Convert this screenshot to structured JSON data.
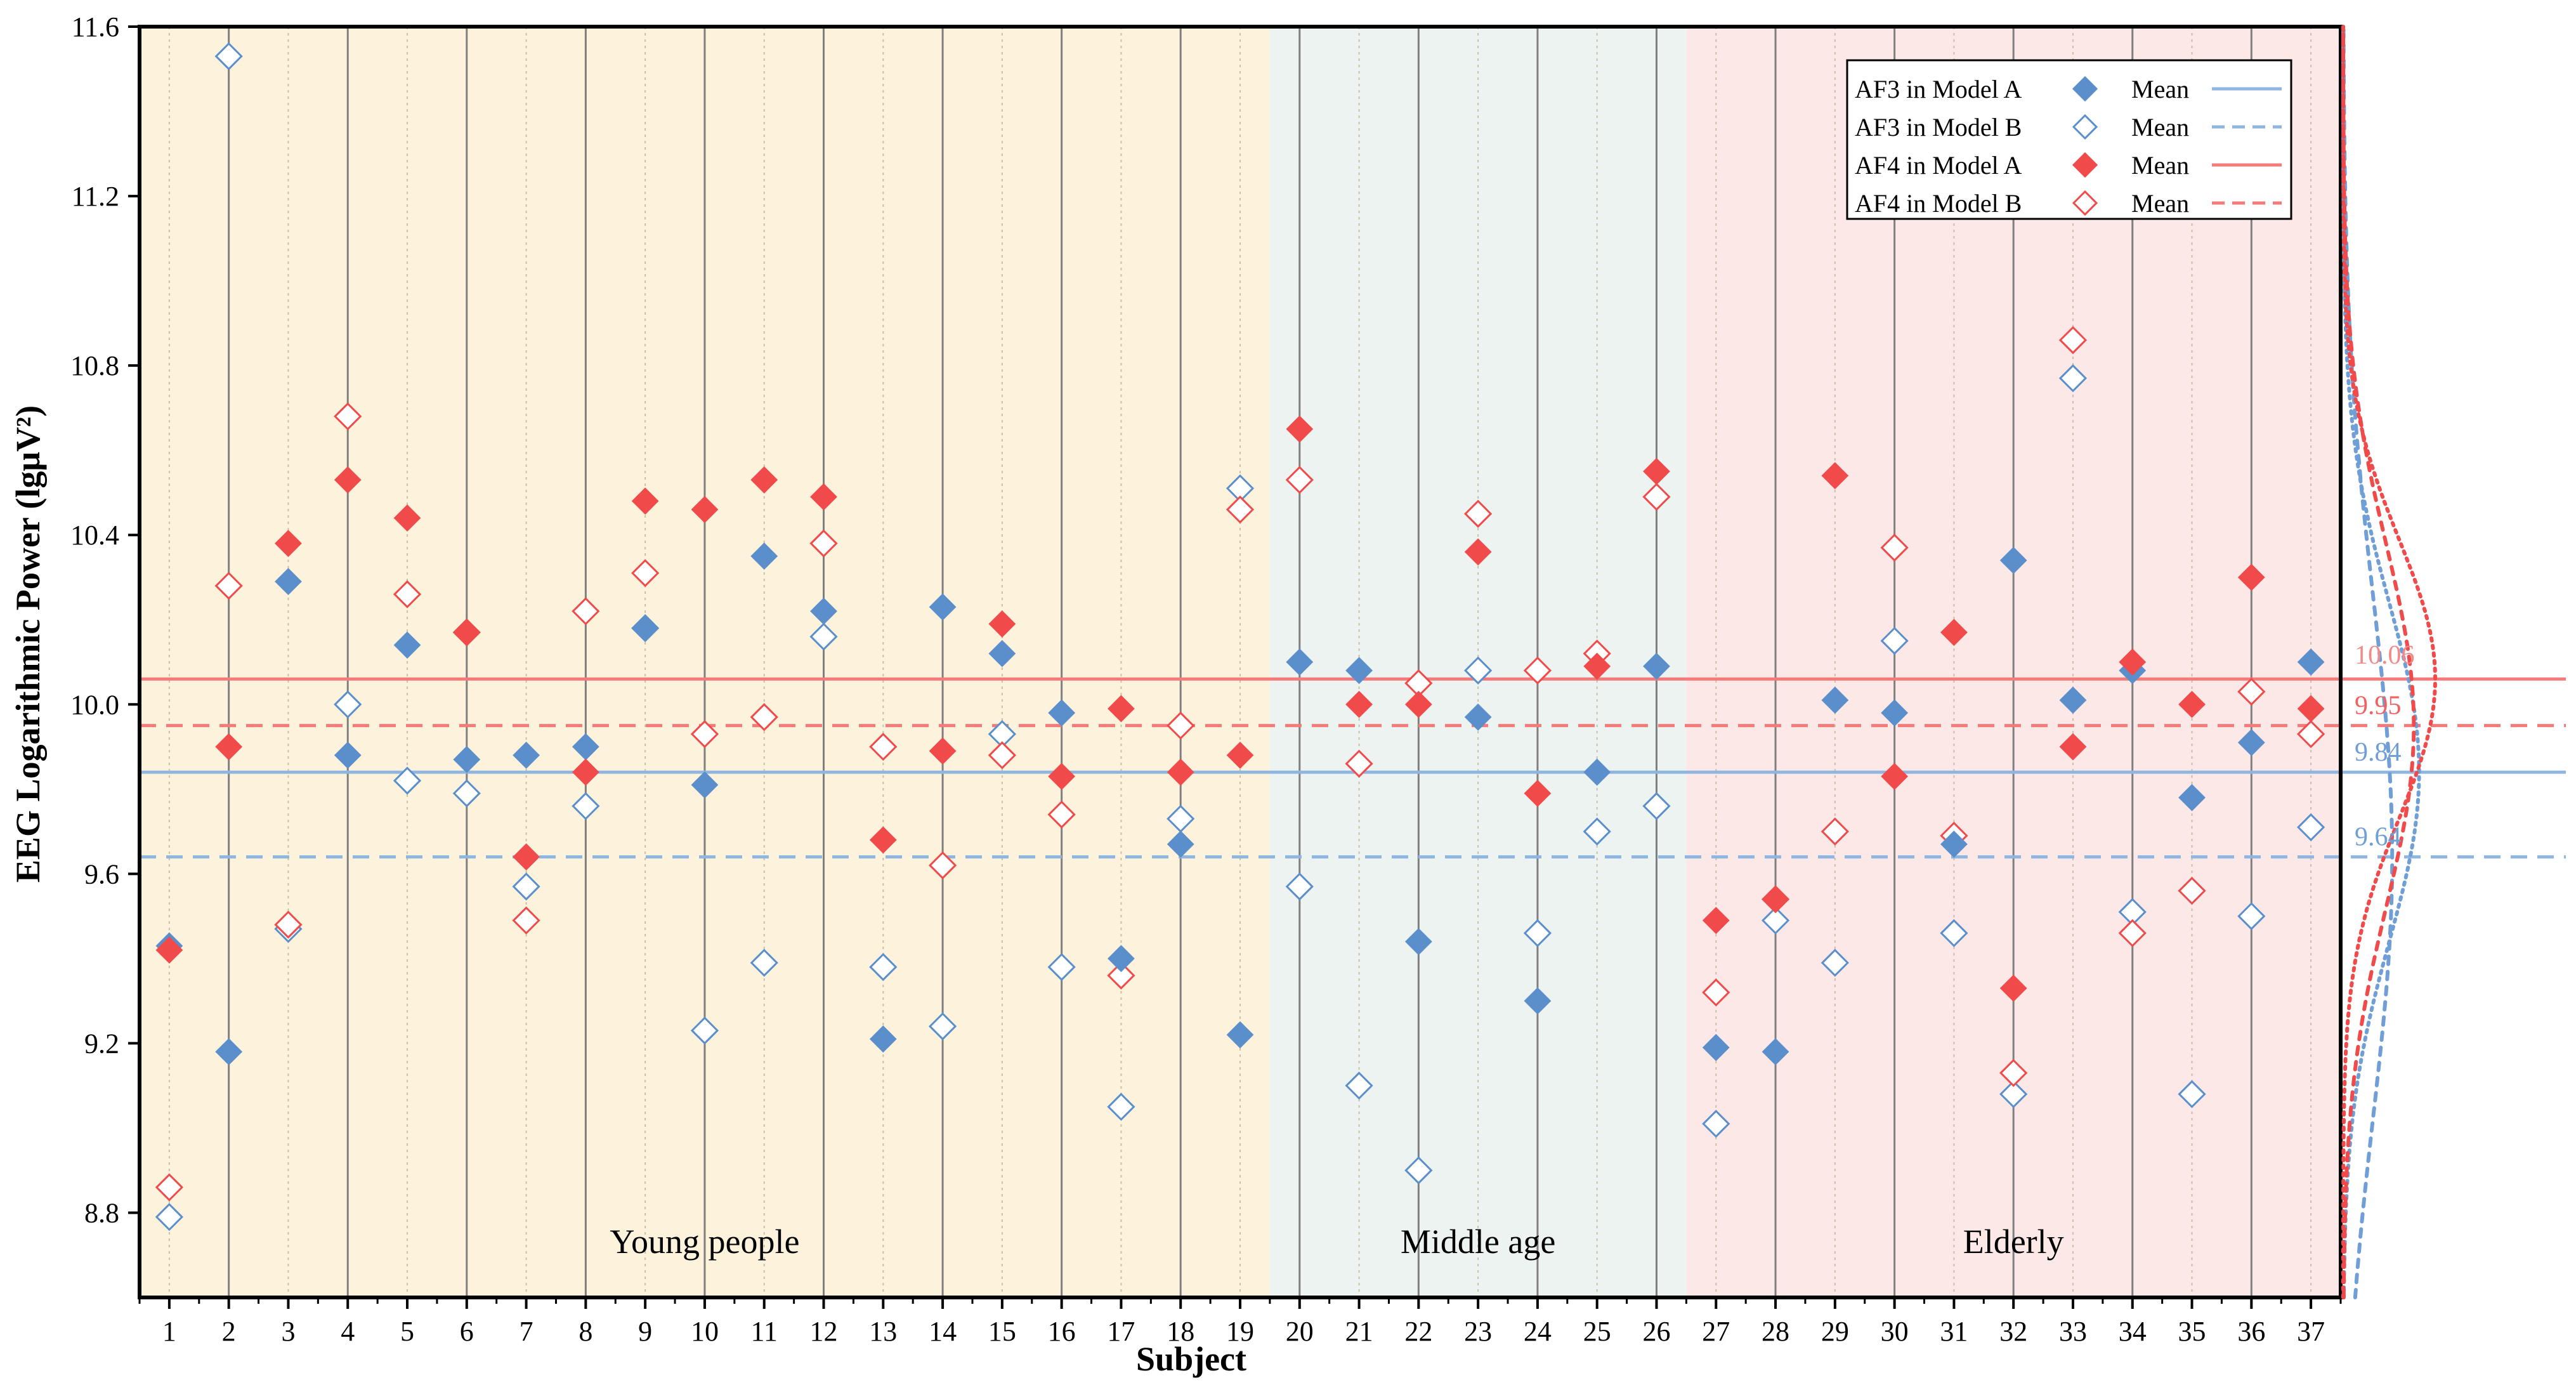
{
  "chart_data": {
    "type": "scatter",
    "xlabel": "Subject",
    "ylabel": "EEG Logarithmic Power (lgμV²)",
    "ylim": [
      8.6,
      11.6
    ],
    "yticks": [
      "8.8",
      "9.2",
      "9.6",
      "10.0",
      "10.4",
      "10.8",
      "11.2",
      "11.6"
    ],
    "ytick_values": [
      8.8,
      9.2,
      9.6,
      10.0,
      10.4,
      10.8,
      11.2,
      11.6
    ],
    "x": [
      1,
      2,
      3,
      4,
      5,
      6,
      7,
      8,
      9,
      10,
      11,
      12,
      13,
      14,
      15,
      16,
      17,
      18,
      19,
      20,
      21,
      22,
      23,
      24,
      25,
      26,
      27,
      28,
      29,
      30,
      31,
      32,
      33,
      34,
      35,
      36,
      37
    ],
    "groups": [
      {
        "label": "Young people",
        "from": 1,
        "to": 19,
        "color": "#fdf3dc"
      },
      {
        "label": "Middle age",
        "from": 20,
        "to": 26,
        "color": "#edf3f1"
      },
      {
        "label": "Elderly",
        "from": 27,
        "to": 37,
        "color": "#fde8e8"
      }
    ],
    "series": [
      {
        "name": "AF3 in Model A",
        "color": "#5b8fcb",
        "filled": true,
        "values": [
          9.43,
          9.18,
          10.29,
          9.88,
          10.14,
          9.87,
          9.88,
          9.9,
          10.18,
          9.81,
          10.35,
          10.22,
          9.21,
          10.23,
          10.12,
          9.98,
          9.4,
          9.67,
          9.22,
          10.1,
          10.08,
          9.44,
          9.97,
          9.3,
          9.84,
          10.09,
          9.19,
          9.18,
          10.01,
          9.98,
          9.67,
          10.34,
          10.01,
          10.08,
          9.78,
          9.91,
          10.1
        ]
      },
      {
        "name": "AF3 in Model B",
        "color": "#5b8fcb",
        "filled": false,
        "values": [
          8.79,
          11.53,
          9.47,
          10.0,
          9.82,
          9.79,
          9.57,
          9.76,
          10.18,
          9.23,
          9.39,
          10.16,
          9.38,
          9.24,
          9.93,
          9.38,
          9.05,
          9.73,
          10.51,
          9.57,
          9.1,
          8.9,
          10.08,
          9.46,
          9.7,
          9.76,
          9.01,
          9.49,
          9.39,
          10.15,
          9.46,
          9.08,
          10.77,
          9.51,
          9.08,
          9.5,
          9.71
        ]
      },
      {
        "name": "AF4 in Model A",
        "color": "#f04a4a",
        "filled": true,
        "values": [
          9.42,
          9.9,
          10.38,
          10.53,
          10.44,
          10.17,
          9.64,
          9.84,
          10.48,
          10.46,
          10.53,
          10.49,
          9.68,
          9.89,
          10.19,
          9.83,
          9.99,
          9.84,
          9.88,
          10.65,
          10.0,
          10.0,
          10.36,
          9.79,
          10.09,
          10.55,
          9.49,
          9.54,
          10.54,
          9.83,
          10.17,
          9.33,
          9.9,
          10.1,
          10.0,
          10.3,
          9.99
        ]
      },
      {
        "name": "AF4 in Model B",
        "color": "#f04a4a",
        "filled": false,
        "values": [
          8.86,
          10.28,
          9.48,
          10.68,
          10.26,
          10.17,
          9.49,
          10.22,
          10.31,
          9.93,
          9.97,
          10.38,
          9.9,
          9.62,
          9.88,
          9.74,
          9.36,
          9.95,
          10.46,
          10.53,
          9.86,
          10.05,
          10.45,
          10.08,
          10.12,
          10.49,
          9.32,
          9.54,
          9.7,
          10.37,
          9.69,
          9.13,
          10.86,
          9.46,
          9.56,
          10.03,
          9.93
        ]
      }
    ],
    "means": [
      {
        "series": "AF3 in Model A",
        "value": 9.84,
        "label": "9.84",
        "color": "#8fb6e1",
        "dashed": false,
        "label_color": "#6f9fd6"
      },
      {
        "series": "AF3 in Model B",
        "value": 9.64,
        "label": "9.64",
        "color": "#8fb6e1",
        "dashed": true,
        "label_color": "#6f9fd6"
      },
      {
        "series": "AF4 in Model A",
        "value": 10.06,
        "label": "10.06",
        "color": "#f57a7a",
        "dashed": false,
        "label_color": "#f28a8a"
      },
      {
        "series": "AF4 in Model B",
        "value": 9.95,
        "label": "9.95",
        "color": "#f57a7a",
        "dashed": true,
        "label_color": "#f26060"
      }
    ],
    "legend": {
      "placement": "top-right",
      "mean_label": "Mean",
      "entries": [
        "AF3 in Model A",
        "AF3 in Model B",
        "AF4 in Model A",
        "AF4 in Model B"
      ]
    },
    "distributions": [
      {
        "series": "AF3 in Model A",
        "mean": 9.84,
        "sd": 0.4,
        "color": "#6f9fd6"
      },
      {
        "series": "AF3 in Model B",
        "mean": 9.64,
        "sd": 0.62,
        "color": "#6f9fd6"
      },
      {
        "series": "AF4 in Model A",
        "mean": 10.06,
        "sd": 0.33,
        "color": "#f04a4a"
      },
      {
        "series": "AF4 in Model B",
        "mean": 9.95,
        "sd": 0.43,
        "color": "#f04a4a"
      }
    ],
    "grid": "vertical"
  }
}
